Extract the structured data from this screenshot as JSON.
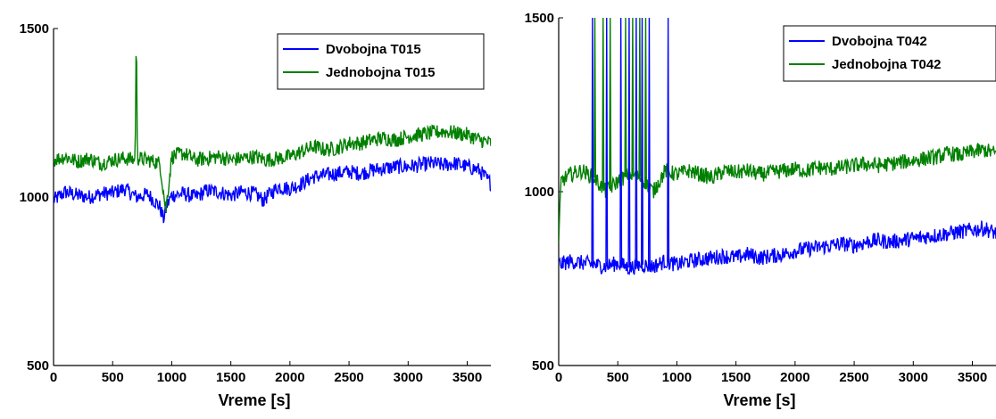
{
  "chart_data": [
    {
      "type": "line",
      "title": "",
      "xlabel": "Vreme [s]",
      "ylabel": "",
      "xlim": [
        0,
        3700
      ],
      "ylim": [
        500,
        1500
      ],
      "xticks": [
        0,
        500,
        1000,
        1500,
        2000,
        2500,
        3000,
        3500
      ],
      "yticks": [
        500,
        1000,
        1500
      ],
      "grid": false,
      "legend_position": "top-right",
      "series": [
        {
          "name": "Dvobojna T015",
          "color": "#0000ff",
          "x": [
            0,
            100,
            200,
            300,
            400,
            500,
            600,
            700,
            800,
            850,
            900,
            930,
            960,
            1000,
            1100,
            1200,
            1300,
            1400,
            1500,
            1600,
            1700,
            1780,
            1800,
            1900,
            2000,
            2100,
            2200,
            2300,
            2400,
            2500,
            2600,
            2700,
            2800,
            2900,
            3000,
            3100,
            3200,
            3300,
            3400,
            3500,
            3600,
            3700
          ],
          "y": [
            990,
            1015,
            1005,
            1000,
            1010,
            1012,
            1025,
            1000,
            1008,
            990,
            970,
            935,
            975,
            1005,
            1010,
            1000,
            1020,
            1015,
            1005,
            1015,
            1010,
            990,
            1000,
            1030,
            1025,
            1040,
            1060,
            1065,
            1070,
            1075,
            1070,
            1080,
            1085,
            1090,
            1090,
            1095,
            1100,
            1095,
            1100,
            1090,
            1080,
            1040
          ]
        },
        {
          "name": "Jednobojna T015",
          "color": "#008000",
          "x": [
            0,
            100,
            200,
            300,
            400,
            500,
            600,
            690,
            700,
            710,
            800,
            900,
            950,
            1000,
            1100,
            1200,
            1300,
            1400,
            1500,
            1600,
            1700,
            1800,
            1900,
            2000,
            2100,
            2200,
            2300,
            2400,
            2500,
            2600,
            2700,
            2800,
            2900,
            3000,
            3100,
            3200,
            3300,
            3400,
            3500,
            3600,
            3700
          ],
          "y": [
            1110,
            1120,
            1105,
            1115,
            1100,
            1110,
            1115,
            1110,
            1500,
            1115,
            1110,
            1100,
            960,
            1120,
            1130,
            1110,
            1115,
            1120,
            1110,
            1115,
            1120,
            1110,
            1115,
            1120,
            1135,
            1150,
            1140,
            1145,
            1160,
            1160,
            1170,
            1175,
            1170,
            1180,
            1185,
            1190,
            1195,
            1190,
            1185,
            1170,
            1160
          ]
        }
      ]
    },
    {
      "type": "line",
      "title": "",
      "xlabel": "Vreme [s]",
      "ylabel": "",
      "xlim": [
        0,
        3700
      ],
      "ylim": [
        500,
        1500
      ],
      "xticks": [
        0,
        500,
        1000,
        1500,
        2000,
        2500,
        3000,
        3500
      ],
      "yticks": [
        500,
        1000,
        1500
      ],
      "grid": false,
      "legend_position": "top-right",
      "series": [
        {
          "name": "Dvobojna T042",
          "color": "#0000ff",
          "x": [
            0,
            100,
            200,
            300,
            400,
            500,
            600,
            700,
            800,
            900,
            1000,
            1100,
            1200,
            1300,
            1400,
            1500,
            1600,
            1700,
            1800,
            1900,
            2000,
            2100,
            2200,
            2300,
            2400,
            2500,
            2600,
            2700,
            2800,
            2900,
            3000,
            3100,
            3200,
            3300,
            3400,
            3500,
            3600,
            3700
          ],
          "y": [
            790,
            800,
            795,
            790,
            785,
            795,
            780,
            790,
            785,
            800,
            790,
            800,
            805,
            810,
            815,
            810,
            820,
            810,
            815,
            820,
            830,
            835,
            840,
            845,
            850,
            845,
            855,
            860,
            855,
            860,
            865,
            870,
            875,
            880,
            885,
            890,
            895,
            880
          ]
        },
        {
          "name": "Jednobojna T042",
          "color": "#008000",
          "x": [
            0,
            20,
            100,
            200,
            300,
            400,
            500,
            600,
            700,
            800,
            900,
            1000,
            1100,
            1200,
            1300,
            1400,
            1500,
            1600,
            1700,
            1800,
            1900,
            2000,
            2100,
            2200,
            2300,
            2400,
            2500,
            2600,
            2700,
            2800,
            2900,
            3000,
            3100,
            3200,
            3300,
            3400,
            3500,
            3600,
            3700
          ],
          "y": [
            850,
            1030,
            1050,
            1060,
            1040,
            1000,
            1030,
            1050,
            1040,
            1000,
            1060,
            1050,
            1060,
            1050,
            1040,
            1060,
            1055,
            1060,
            1050,
            1055,
            1060,
            1065,
            1060,
            1070,
            1065,
            1070,
            1075,
            1080,
            1075,
            1080,
            1085,
            1090,
            1095,
            1100,
            1110,
            1105,
            1115,
            1120,
            1110
          ]
        }
      ]
    }
  ]
}
